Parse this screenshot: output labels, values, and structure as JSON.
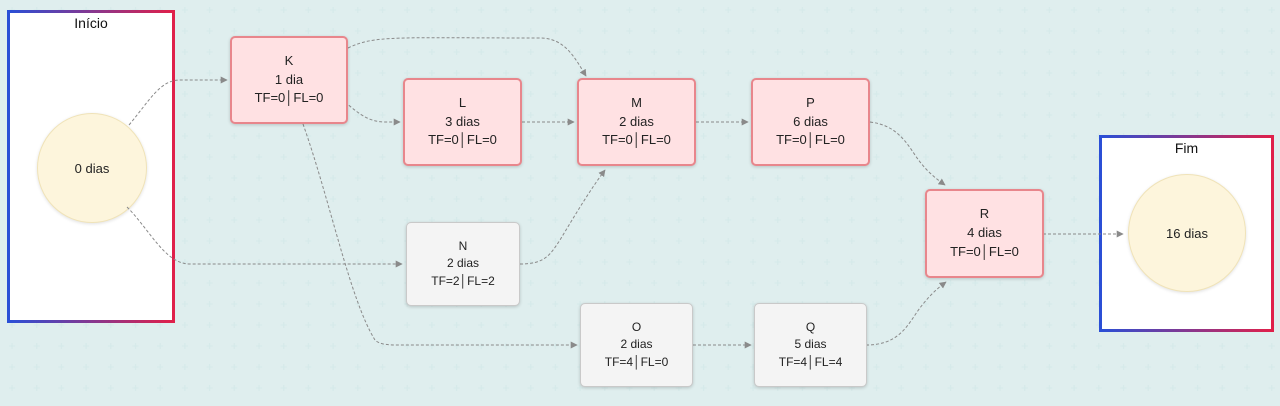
{
  "start": {
    "title": "Início",
    "duration": "0 dias"
  },
  "end": {
    "title": "Fim",
    "duration": "16 dias"
  },
  "tasks": {
    "K": {
      "name": "K",
      "duration": "1 dia",
      "slack": "TF=0│FL=0",
      "critical": true
    },
    "L": {
      "name": "L",
      "duration": "3 dias",
      "slack": "TF=0│FL=0",
      "critical": true
    },
    "M": {
      "name": "M",
      "duration": "2 dias",
      "slack": "TF=0│FL=0",
      "critical": true
    },
    "P": {
      "name": "P",
      "duration": "6 dias",
      "slack": "TF=0│FL=0",
      "critical": true
    },
    "N": {
      "name": "N",
      "duration": "2 dias",
      "slack": "TF=2│FL=2",
      "critical": false
    },
    "O": {
      "name": "O",
      "duration": "2 dias",
      "slack": "TF=4│FL=0",
      "critical": false
    },
    "Q": {
      "name": "Q",
      "duration": "5 dias",
      "slack": "TF=4│FL=4",
      "critical": false
    },
    "R": {
      "name": "R",
      "duration": "4 dias",
      "slack": "TF=0│FL=0",
      "critical": true
    }
  },
  "edges": [
    [
      "start",
      "K"
    ],
    [
      "start",
      "N"
    ],
    [
      "K",
      "L"
    ],
    [
      "K",
      "M"
    ],
    [
      "K",
      "O"
    ],
    [
      "L",
      "M"
    ],
    [
      "N",
      "M"
    ],
    [
      "M",
      "P"
    ],
    [
      "O",
      "Q"
    ],
    [
      "P",
      "R"
    ],
    [
      "Q",
      "R"
    ],
    [
      "R",
      "end"
    ]
  ],
  "colors": {
    "critical_fill": "#ffe1e3",
    "critical_border": "#e8868c",
    "normal_fill": "#f4f4f4",
    "normal_border": "#c9c9c9",
    "frame_gradient_start": "#2a4fd6",
    "frame_gradient_end": "#e0204a",
    "milestone_fill": "#fdf5dc",
    "connector": "#888888"
  }
}
